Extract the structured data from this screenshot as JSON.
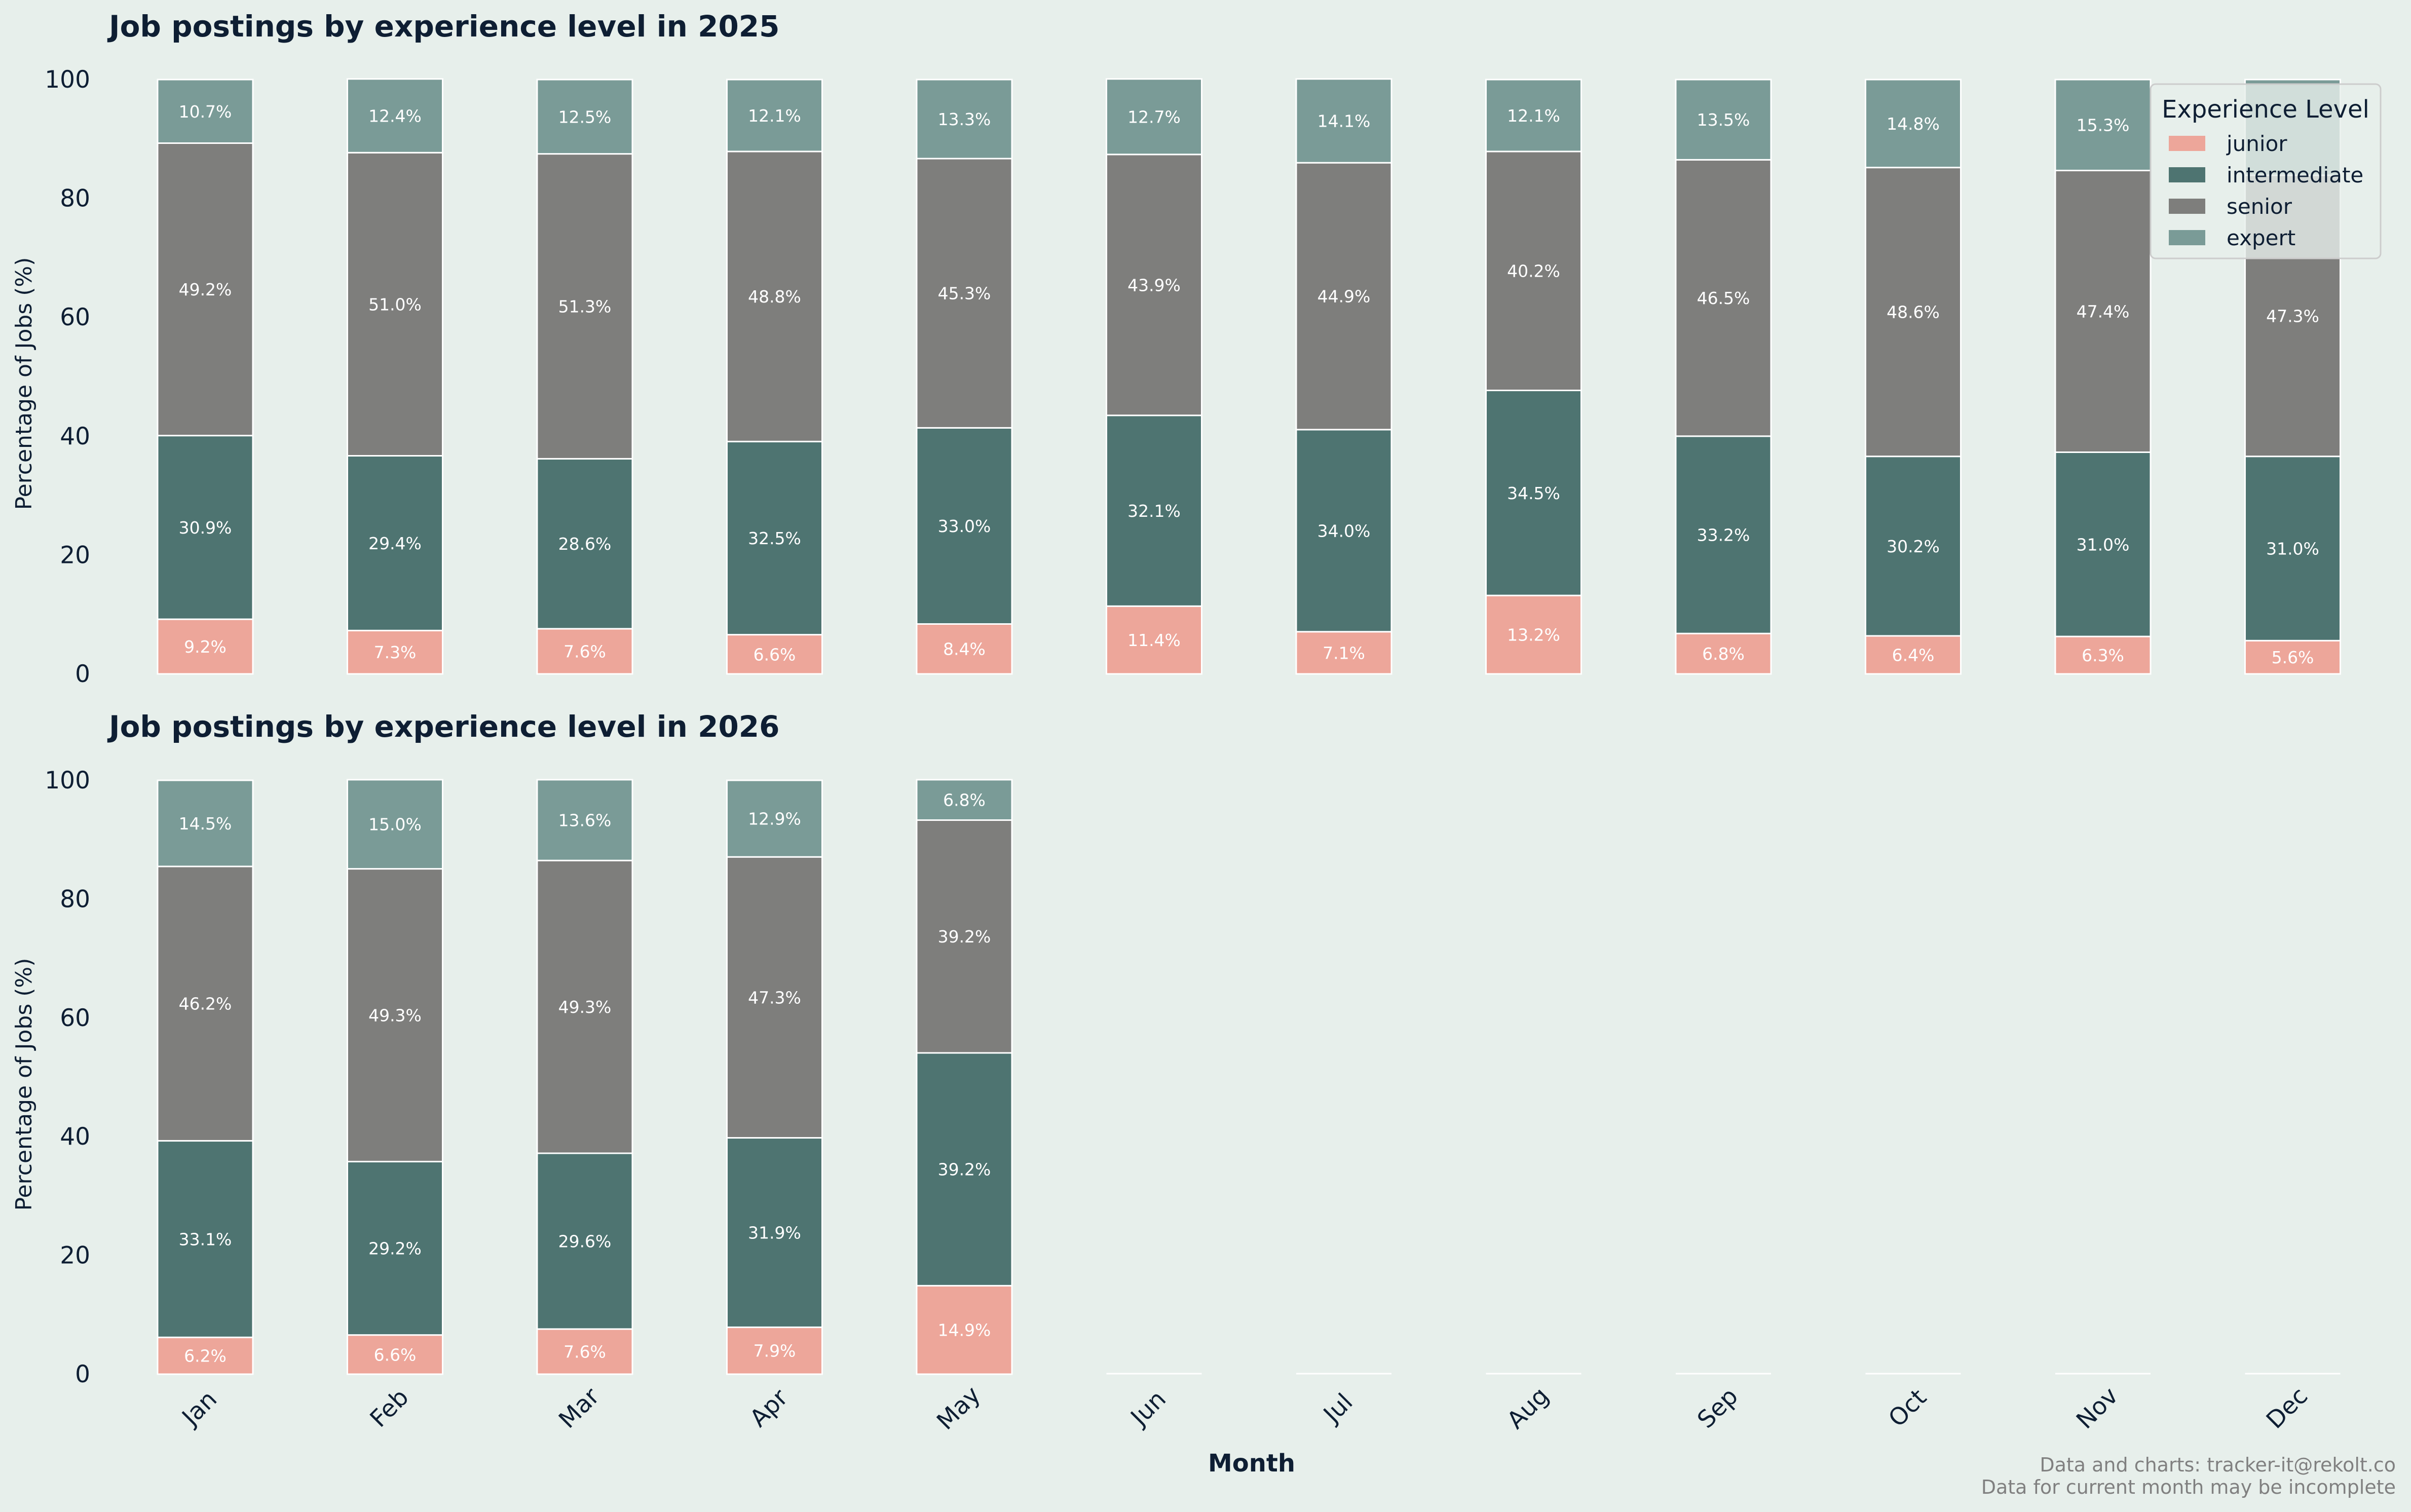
{
  "colors": {
    "background": "#e7efeb",
    "junior": "#eda69a",
    "intermediate": "#4e7471",
    "senior": "#7e7e7c",
    "expert": "#7a9b97",
    "text": "#0e1e33",
    "footer": "#808080"
  },
  "legend": {
    "title": "Experience Level",
    "placement": "top-right"
  },
  "footer": {
    "line1": "Data and charts: tracker-it@rekolt.co",
    "line2": "Data for current month may be incomplete"
  },
  "chart_data": [
    {
      "type": "bar",
      "stacked": true,
      "title": "Job postings by experience level in 2025",
      "ylabel": "Percentage of Jobs (%)",
      "xlabel": "",
      "ylim": [
        0,
        100
      ],
      "yticks": [
        "0",
        "20",
        "40",
        "60",
        "80",
        "100"
      ],
      "categories": [
        "Jan",
        "Feb",
        "Mar",
        "Apr",
        "May",
        "Jun",
        "Jul",
        "Aug",
        "Sep",
        "Oct",
        "Nov",
        "Dec"
      ],
      "series": [
        {
          "name": "junior",
          "values": [
            9.2,
            7.3,
            7.6,
            6.6,
            8.4,
            11.4,
            7.1,
            13.2,
            6.8,
            6.4,
            6.3,
            5.6
          ],
          "labels": [
            "9.2%",
            "7.3%",
            "7.6%",
            "6.6%",
            "8.4%",
            "11.4%",
            "7.1%",
            "13.2%",
            "6.8%",
            "6.4%",
            "6.3%",
            "5.6%"
          ]
        },
        {
          "name": "intermediate",
          "values": [
            30.9,
            29.4,
            28.6,
            32.5,
            33.0,
            32.1,
            34.0,
            34.5,
            33.2,
            30.2,
            31.0,
            31.0
          ],
          "labels": [
            "30.9%",
            "29.4%",
            "28.6%",
            "32.5%",
            "33.0%",
            "32.1%",
            "34.0%",
            "34.5%",
            "33.2%",
            "30.2%",
            "31.0%",
            "31.0%"
          ]
        },
        {
          "name": "senior",
          "values": [
            49.2,
            51.0,
            51.3,
            48.8,
            45.3,
            43.9,
            44.9,
            40.2,
            46.5,
            48.6,
            47.4,
            47.3
          ],
          "labels": [
            "49.2%",
            "51.0%",
            "51.3%",
            "48.8%",
            "45.3%",
            "43.9%",
            "44.9%",
            "40.2%",
            "46.5%",
            "48.6%",
            "47.4%",
            "47.3%"
          ]
        },
        {
          "name": "expert",
          "values": [
            10.7,
            12.4,
            12.5,
            12.1,
            13.3,
            12.7,
            14.1,
            12.1,
            13.5,
            14.8,
            15.3,
            16.1
          ],
          "labels": [
            "10.7%",
            "12.4%",
            "12.5%",
            "12.1%",
            "13.3%",
            "12.7%",
            "14.1%",
            "12.1%",
            "13.5%",
            "14.8%",
            "15.3%",
            ""
          ]
        }
      ]
    },
    {
      "type": "bar",
      "stacked": true,
      "title": "Job postings by experience level in 2026",
      "ylabel": "Percentage of Jobs (%)",
      "xlabel": "Month",
      "ylim": [
        0,
        100
      ],
      "yticks": [
        "0",
        "20",
        "40",
        "60",
        "80",
        "100"
      ],
      "categories": [
        "Jan",
        "Feb",
        "Mar",
        "Apr",
        "May",
        "Jun",
        "Jul",
        "Aug",
        "Sep",
        "Oct",
        "Nov",
        "Dec"
      ],
      "series": [
        {
          "name": "junior",
          "values": [
            6.2,
            6.6,
            7.6,
            7.9,
            14.9,
            0,
            0,
            0,
            0,
            0,
            0,
            0
          ],
          "labels": [
            "6.2%",
            "6.6%",
            "7.6%",
            "7.9%",
            "14.9%",
            "",
            "",
            "",
            "",
            "",
            "",
            ""
          ]
        },
        {
          "name": "intermediate",
          "values": [
            33.1,
            29.2,
            29.6,
            31.9,
            39.2,
            0,
            0,
            0,
            0,
            0,
            0,
            0
          ],
          "labels": [
            "33.1%",
            "29.2%",
            "29.6%",
            "31.9%",
            "39.2%",
            "",
            "",
            "",
            "",
            "",
            "",
            ""
          ]
        },
        {
          "name": "senior",
          "values": [
            46.2,
            49.3,
            49.3,
            47.3,
            39.2,
            0,
            0,
            0,
            0,
            0,
            0,
            0
          ],
          "labels": [
            "46.2%",
            "49.3%",
            "49.3%",
            "47.3%",
            "39.2%",
            "",
            "",
            "",
            "",
            "",
            "",
            ""
          ]
        },
        {
          "name": "expert",
          "values": [
            14.5,
            15.0,
            13.6,
            12.9,
            6.8,
            0,
            0,
            0,
            0,
            0,
            0,
            0
          ],
          "labels": [
            "14.5%",
            "15.0%",
            "13.6%",
            "12.9%",
            "6.8%",
            "",
            "",
            "",
            "",
            "",
            "",
            ""
          ]
        }
      ]
    }
  ]
}
